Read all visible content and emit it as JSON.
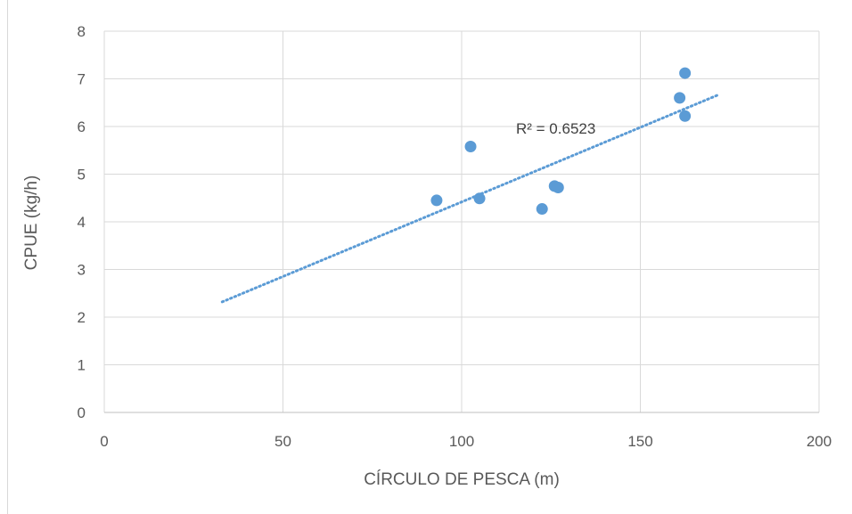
{
  "chart_data": {
    "type": "scatter",
    "title": "",
    "xlabel": "CÍRCULO DE PESCA (m)",
    "ylabel": "CPUE (kg/h)",
    "xlim": [
      0,
      200
    ],
    "ylim": [
      0,
      8
    ],
    "x_ticks": [
      "0",
      "50",
      "100",
      "150",
      "200"
    ],
    "y_ticks": [
      "0",
      "1",
      "2",
      "3",
      "4",
      "5",
      "6",
      "7",
      "8"
    ],
    "grid": true,
    "legend": "none",
    "series": [
      {
        "color": "#5b9bd5",
        "points": [
          {
            "x": 93,
            "y": 4.45
          },
          {
            "x": 102.5,
            "y": 5.58
          },
          {
            "x": 105,
            "y": 4.49
          },
          {
            "x": 122.5,
            "y": 4.27
          },
          {
            "x": 126,
            "y": 4.75
          },
          {
            "x": 127,
            "y": 4.72
          },
          {
            "x": 161,
            "y": 6.6
          },
          {
            "x": 162.5,
            "y": 7.12
          },
          {
            "x": 162.5,
            "y": 6.22
          }
        ]
      }
    ],
    "trendline": {
      "type": "linear",
      "style": "dotted",
      "color": "#5b9bd5",
      "start": {
        "x": 33,
        "y": 2.32
      },
      "end": {
        "x": 172,
        "y": 6.67
      },
      "r2_label": "R² = 0.6523"
    }
  }
}
